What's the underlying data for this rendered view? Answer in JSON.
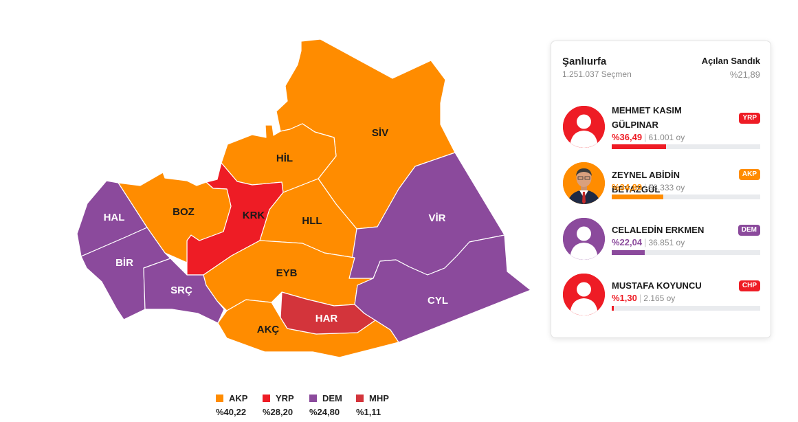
{
  "colors": {
    "AKP": "#ff8c00",
    "YRP": "#ee1c25",
    "DEM": "#8b4a9c",
    "MHP": "#d3343b",
    "CHP": "#ee1c25"
  },
  "districts": [
    {
      "code": "SİV",
      "party": "AKP"
    },
    {
      "code": "HİL",
      "party": "AKP"
    },
    {
      "code": "KRK",
      "party": "YRP"
    },
    {
      "code": "BOZ",
      "party": "AKP"
    },
    {
      "code": "HAL",
      "party": "DEM"
    },
    {
      "code": "HLL",
      "party": "AKP"
    },
    {
      "code": "VİR",
      "party": "DEM"
    },
    {
      "code": "BİR",
      "party": "DEM"
    },
    {
      "code": "SRÇ",
      "party": "DEM"
    },
    {
      "code": "EYB",
      "party": "AKP"
    },
    {
      "code": "CYL",
      "party": "DEM"
    },
    {
      "code": "AKÇ",
      "party": "AKP"
    },
    {
      "code": "HAR",
      "party": "MHP"
    }
  ],
  "legend": [
    {
      "party": "AKP",
      "pct": "%40,22"
    },
    {
      "party": "YRP",
      "pct": "%28,20"
    },
    {
      "party": "DEM",
      "pct": "%24,80"
    },
    {
      "party": "MHP",
      "pct": "%1,11"
    }
  ],
  "summary": {
    "city": "Şanlıurfa",
    "voters": "1.251.037 Seçmen",
    "opened_label": "Açılan Sandık",
    "opened_value": "%21,89"
  },
  "candidates": [
    {
      "name": "MEHMET KASIM GÜLPINAR",
      "party": "YRP",
      "pct_text": "%36,49",
      "votes": "61.001 oy",
      "share": 36.49,
      "avatar": "placeholder-avatar-icon"
    },
    {
      "name": "ZEYNEL ABİDİN BEYAZGÜL",
      "party": "AKP",
      "pct_text": "%34,89",
      "votes": "58.333 oy",
      "share": 34.89,
      "avatar": "candidate-photo"
    },
    {
      "name": "CELALEDİN ERKMEN",
      "party": "DEM",
      "pct_text": "%22,04",
      "votes": "36.851 oy",
      "share": 22.04,
      "avatar": "placeholder-avatar-icon"
    },
    {
      "name": "MUSTAFA KOYUNCU",
      "party": "CHP",
      "pct_text": "%1,30",
      "votes": "2.165 oy",
      "share": 1.3,
      "avatar": "placeholder-avatar-icon"
    }
  ]
}
